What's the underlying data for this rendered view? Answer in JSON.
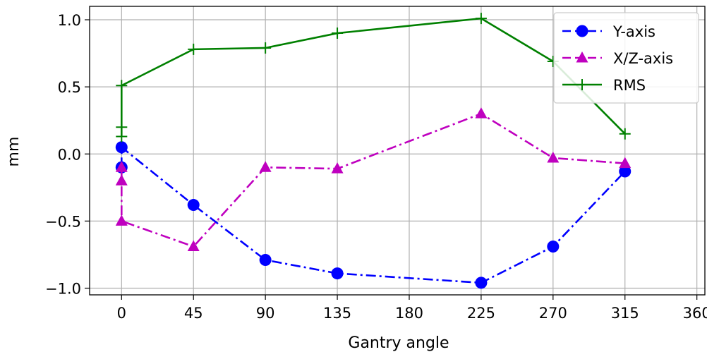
{
  "chart_data": {
    "type": "line",
    "title": "",
    "xlabel": "Gantry angle",
    "ylabel": "mm",
    "xlim": [
      -20,
      365
    ],
    "ylim": [
      -1.05,
      1.1
    ],
    "x_ticks": [
      0,
      45,
      90,
      135,
      180,
      225,
      270,
      315,
      360
    ],
    "x_tick_labels": [
      "0",
      "45",
      "90",
      "135",
      "180",
      "225",
      "270",
      "315",
      "360"
    ],
    "y_ticks": [
      -1.0,
      -0.5,
      0.0,
      0.5,
      1.0
    ],
    "y_tick_labels": [
      "−1.0",
      "−0.5",
      "0.0",
      "0.5",
      "1.0"
    ],
    "grid": true,
    "legend_position": "top-right",
    "series": [
      {
        "name": "Y-axis",
        "color": "#0000ff",
        "marker": "circle",
        "line_style": "dash-dot",
        "x": [
          0,
          0,
          45,
          90,
          135,
          225,
          270,
          315
        ],
        "y": [
          -0.1,
          0.05,
          -0.38,
          -0.79,
          -0.89,
          -0.96,
          -0.69,
          -0.13
        ]
      },
      {
        "name": "X/Z-axis",
        "color": "#bf00bf",
        "marker": "triangle",
        "line_style": "dash-dot",
        "x": [
          0,
          0,
          0,
          45,
          90,
          135,
          225,
          270,
          315
        ],
        "y": [
          -0.1,
          -0.2,
          -0.5,
          -0.69,
          -0.1,
          -0.11,
          0.3,
          -0.03,
          -0.07
        ]
      },
      {
        "name": "RMS",
        "color": "#008000",
        "marker": "plus",
        "line_style": "solid",
        "x": [
          0,
          0,
          0,
          45,
          90,
          135,
          225,
          270,
          315
        ],
        "y": [
          0.13,
          0.2,
          0.51,
          0.78,
          0.79,
          0.9,
          1.01,
          0.69,
          0.15
        ]
      }
    ]
  }
}
